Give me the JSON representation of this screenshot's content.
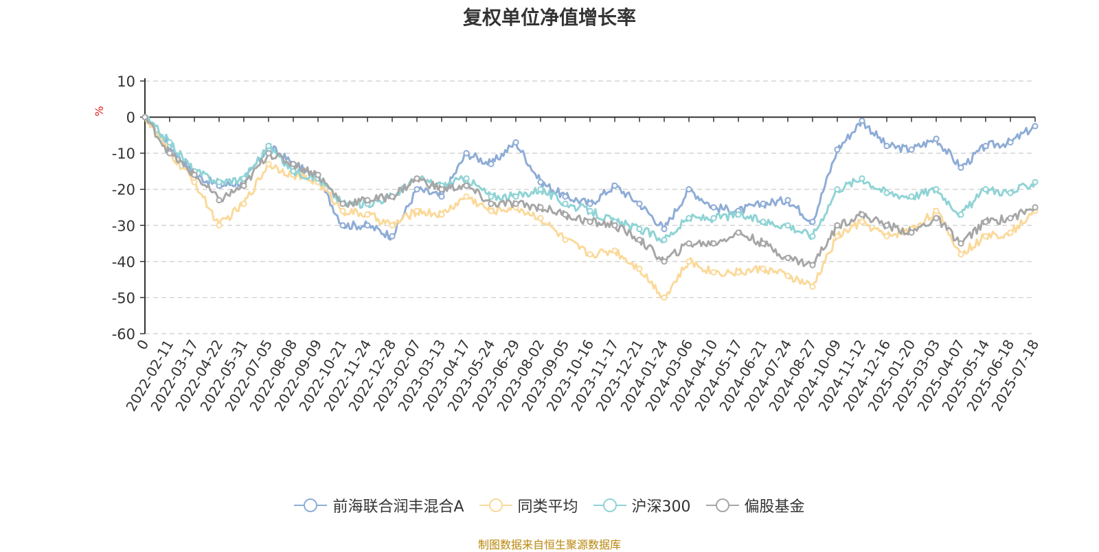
{
  "chart_data": {
    "type": "line",
    "title": "复权单位净值增长率",
    "ylabel": "%",
    "ylim": [
      -60,
      10
    ],
    "yticks": [
      "10",
      "0",
      "-10",
      "-20",
      "-30",
      "-40",
      "-50",
      "-60"
    ],
    "grid": true,
    "legend_position": "bottom",
    "x_first_label": "0",
    "x": [
      "2022-02-11",
      "2022-03-17",
      "2022-04-22",
      "2022-05-31",
      "2022-07-05",
      "2022-08-08",
      "2022-09-09",
      "2022-10-21",
      "2022-11-24",
      "2022-12-28",
      "2023-02-07",
      "2023-03-13",
      "2023-04-17",
      "2023-05-24",
      "2023-06-29",
      "2023-08-02",
      "2023-09-05",
      "2023-10-16",
      "2023-11-17",
      "2023-12-21",
      "2024-01-24",
      "2024-03-06",
      "2024-04-10",
      "2024-05-17",
      "2024-06-21",
      "2024-07-24",
      "2024-08-27",
      "2024-10-09",
      "2024-11-12",
      "2024-12-16",
      "2025-01-20",
      "2025-03-03",
      "2025-04-07",
      "2025-05-14",
      "2025-06-18",
      "2025-07-18"
    ],
    "series": [
      {
        "name": "前海联合润丰混合A",
        "color": "#8eacd6",
        "start": 0,
        "values": [
          -8,
          -16,
          -19,
          -18,
          -8,
          -13,
          -17,
          -30,
          -30,
          -33,
          -20,
          -22,
          -10,
          -13,
          -7,
          -18,
          -22,
          -24,
          -19,
          -24,
          -31,
          -20,
          -25,
          -26,
          -24,
          -23,
          -29,
          -9,
          -1,
          -8,
          -9,
          -6,
          -14,
          -8,
          -7,
          -2.5
        ]
      },
      {
        "name": "同类平均",
        "color": "#fbd99a",
        "start": 0,
        "values": [
          -10,
          -18,
          -30,
          -24,
          -13,
          -16,
          -18,
          -26,
          -27,
          -30,
          -26,
          -27,
          -22,
          -26,
          -25,
          -28,
          -34,
          -38,
          -37,
          -42,
          -50,
          -40,
          -43,
          -43,
          -42,
          -44,
          -47,
          -33,
          -29,
          -33,
          -31,
          -26,
          -38,
          -33,
          -32,
          -26
        ]
      },
      {
        "name": "沪深300",
        "color": "#8fd3d5",
        "start": 0,
        "values": [
          -7,
          -15,
          -18,
          -17,
          -8,
          -15,
          -17,
          -24,
          -24,
          -22,
          -17,
          -19,
          -17,
          -22,
          -22,
          -20,
          -24,
          -26,
          -29,
          -31,
          -34,
          -28,
          -28,
          -27,
          -29,
          -30,
          -33,
          -20,
          -17,
          -21,
          -22,
          -20,
          -27,
          -20,
          -21,
          -18
        ]
      },
      {
        "name": "偏股基金",
        "color": "#a6a6a6",
        "start": 0,
        "values": [
          -10,
          -16,
          -23,
          -19,
          -10,
          -13,
          -16,
          -24,
          -23,
          -22,
          -17,
          -20,
          -19,
          -24,
          -24,
          -25,
          -27,
          -29,
          -30,
          -34,
          -40,
          -35,
          -35,
          -32,
          -35,
          -39,
          -41,
          -30,
          -27,
          -30,
          -32,
          -28,
          -35,
          -29,
          -28,
          -25
        ]
      }
    ]
  },
  "source_note": "制图数据来自恒生聚源数据库"
}
